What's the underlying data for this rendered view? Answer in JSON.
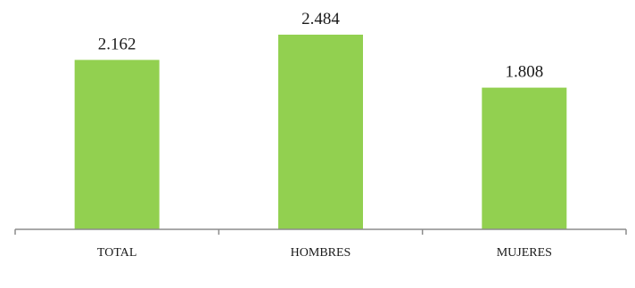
{
  "chart_data": {
    "type": "bar",
    "categories": [
      "TOTAL",
      "HOMBRES",
      "MUJERES"
    ],
    "values": [
      2162,
      2484,
      1808
    ],
    "value_labels": [
      "2.162",
      "2.484",
      "1.808"
    ],
    "title": "",
    "xlabel": "",
    "ylabel": "",
    "ylim": [
      0,
      2600
    ],
    "grid": false,
    "legend": "none",
    "bar_color": "#92d050",
    "axis_color": "#8c8c8c"
  }
}
